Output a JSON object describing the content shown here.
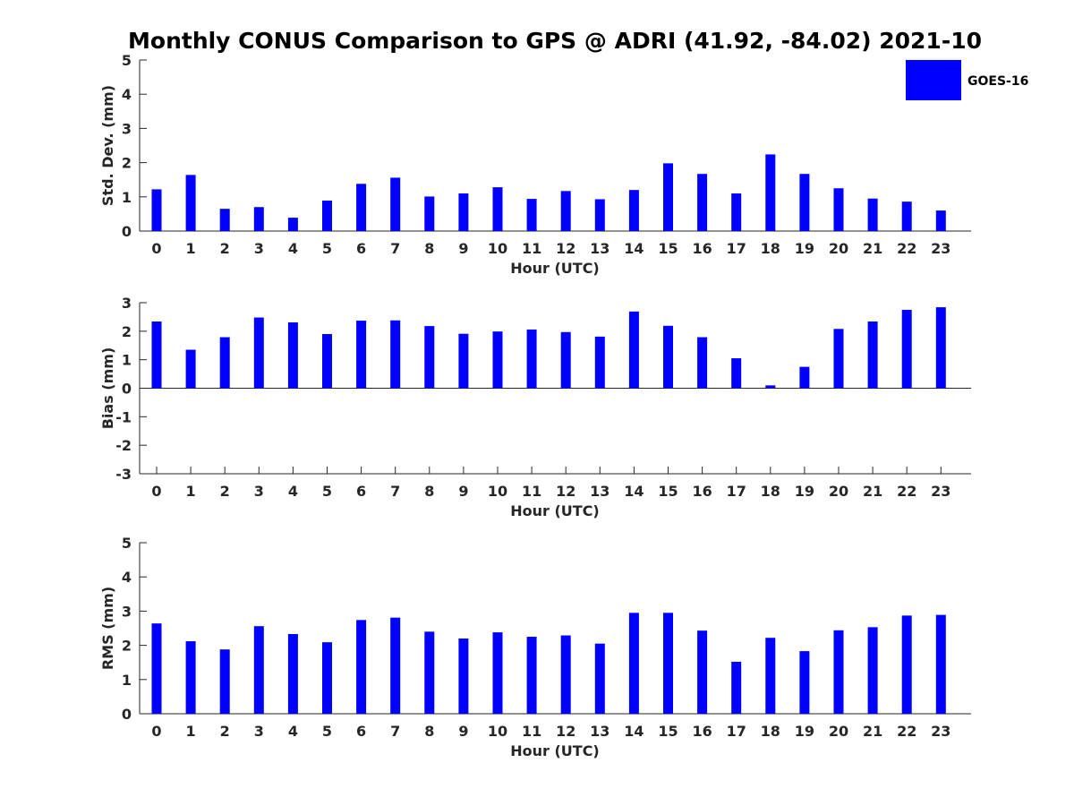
{
  "title": "Monthly CONUS Comparison to GPS @ ADRI (41.92, -84.02) 2021-10",
  "legend": {
    "label": "GOES-16",
    "color": "#0000ff"
  },
  "bar_color": "#0000ff",
  "chart_data": [
    {
      "type": "bar",
      "series_name": "GOES-16",
      "xlabel": "Hour (UTC)",
      "ylabel": "Std. Dev. (mm)",
      "ylim": [
        0,
        5
      ],
      "yticks": [
        0,
        1,
        2,
        3,
        4,
        5
      ],
      "categories": [
        "0",
        "1",
        "2",
        "3",
        "4",
        "5",
        "6",
        "7",
        "8",
        "9",
        "10",
        "11",
        "12",
        "13",
        "14",
        "15",
        "16",
        "17",
        "18",
        "19",
        "20",
        "21",
        "22",
        "23"
      ],
      "values": [
        1.22,
        1.64,
        0.65,
        0.7,
        0.39,
        0.89,
        1.38,
        1.56,
        1.01,
        1.1,
        1.28,
        0.94,
        1.17,
        0.93,
        1.2,
        1.98,
        1.67,
        1.1,
        2.24,
        1.67,
        1.25,
        0.95,
        0.86,
        0.6
      ]
    },
    {
      "type": "bar",
      "series_name": "GOES-16",
      "xlabel": "Hour (UTC)",
      "ylabel": "Bias (mm)",
      "ylim": [
        -3,
        3
      ],
      "yticks": [
        -3,
        -2,
        -1,
        0,
        1,
        2,
        3
      ],
      "categories": [
        "0",
        "1",
        "2",
        "3",
        "4",
        "5",
        "6",
        "7",
        "8",
        "9",
        "10",
        "11",
        "12",
        "13",
        "14",
        "15",
        "16",
        "17",
        "18",
        "19",
        "20",
        "21",
        "22",
        "23"
      ],
      "values": [
        2.34,
        1.35,
        1.79,
        2.48,
        2.31,
        1.9,
        2.37,
        2.38,
        2.18,
        1.91,
        1.99,
        2.06,
        1.97,
        1.81,
        2.69,
        2.19,
        1.79,
        1.05,
        0.1,
        0.75,
        2.08,
        2.34,
        2.75,
        2.84
      ]
    },
    {
      "type": "bar",
      "series_name": "GOES-16",
      "xlabel": "Hour (UTC)",
      "ylabel": "RMS (mm)",
      "ylim": [
        0,
        5
      ],
      "yticks": [
        0,
        1,
        2,
        3,
        4,
        5
      ],
      "categories": [
        "0",
        "1",
        "2",
        "3",
        "4",
        "5",
        "6",
        "7",
        "8",
        "9",
        "10",
        "11",
        "12",
        "13",
        "14",
        "15",
        "16",
        "17",
        "18",
        "19",
        "20",
        "21",
        "22",
        "23"
      ],
      "values": [
        2.64,
        2.12,
        1.88,
        2.56,
        2.33,
        2.09,
        2.74,
        2.81,
        2.4,
        2.2,
        2.38,
        2.25,
        2.29,
        2.05,
        2.95,
        2.95,
        2.43,
        1.52,
        2.22,
        1.83,
        2.44,
        2.53,
        2.87,
        2.89
      ]
    }
  ]
}
